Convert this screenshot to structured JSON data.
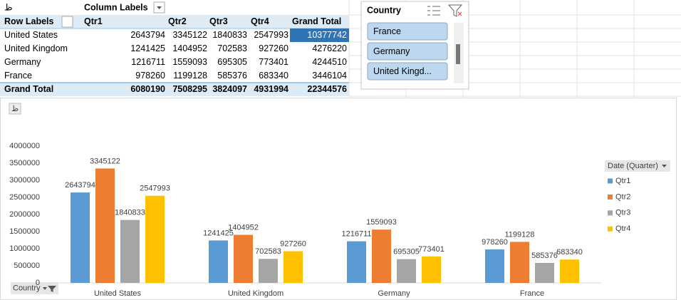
{
  "pivot": {
    "column_labels": "Column Labels",
    "header": [
      "Row Labels",
      "Qtr1",
      "Qtr2",
      "Qtr3",
      "Qtr4",
      "Grand Total"
    ],
    "rows": [
      [
        "United States",
        2643794,
        3345122,
        1840833,
        2547993,
        10377742
      ],
      [
        "United Kingdom",
        1241425,
        1404952,
        702583,
        927260,
        4276220
      ],
      [
        "Germany",
        1216711,
        1559093,
        695305,
        773401,
        4244510
      ],
      [
        "France",
        978260,
        1199128,
        585376,
        683340,
        3446104
      ]
    ],
    "total": [
      "Grand Total",
      6080190,
      7508295,
      3824097,
      4931994,
      22344576
    ]
  },
  "slicer": {
    "title": "Country",
    "items": [
      "France",
      "Germany",
      "United Kingd..."
    ]
  },
  "chart_data": {
    "type": "bar",
    "categories": [
      "United States",
      "United Kingdom",
      "Germany",
      "France"
    ],
    "series": [
      {
        "name": "Qtr1",
        "color": "#5b9bd5",
        "values": [
          2643794,
          1241425,
          1216711,
          978260
        ]
      },
      {
        "name": "Qtr2",
        "color": "#ed7d31",
        "values": [
          3345122,
          1404952,
          1559093,
          1199128
        ]
      },
      {
        "name": "Qtr3",
        "color": "#a5a5a5",
        "values": [
          1840833,
          702583,
          695305,
          585376
        ]
      },
      {
        "name": "Qtr4",
        "color": "#ffc000",
        "values": [
          2547993,
          927260,
          773401,
          683340
        ]
      }
    ],
    "ylim": [
      0,
      4000000
    ],
    "yticks": [
      0,
      500000,
      1000000,
      1500000,
      2000000,
      2500000,
      3000000,
      3500000,
      4000000
    ],
    "legend_title": "Date (Quarter)",
    "field_button": "Country",
    "legend": "right"
  }
}
